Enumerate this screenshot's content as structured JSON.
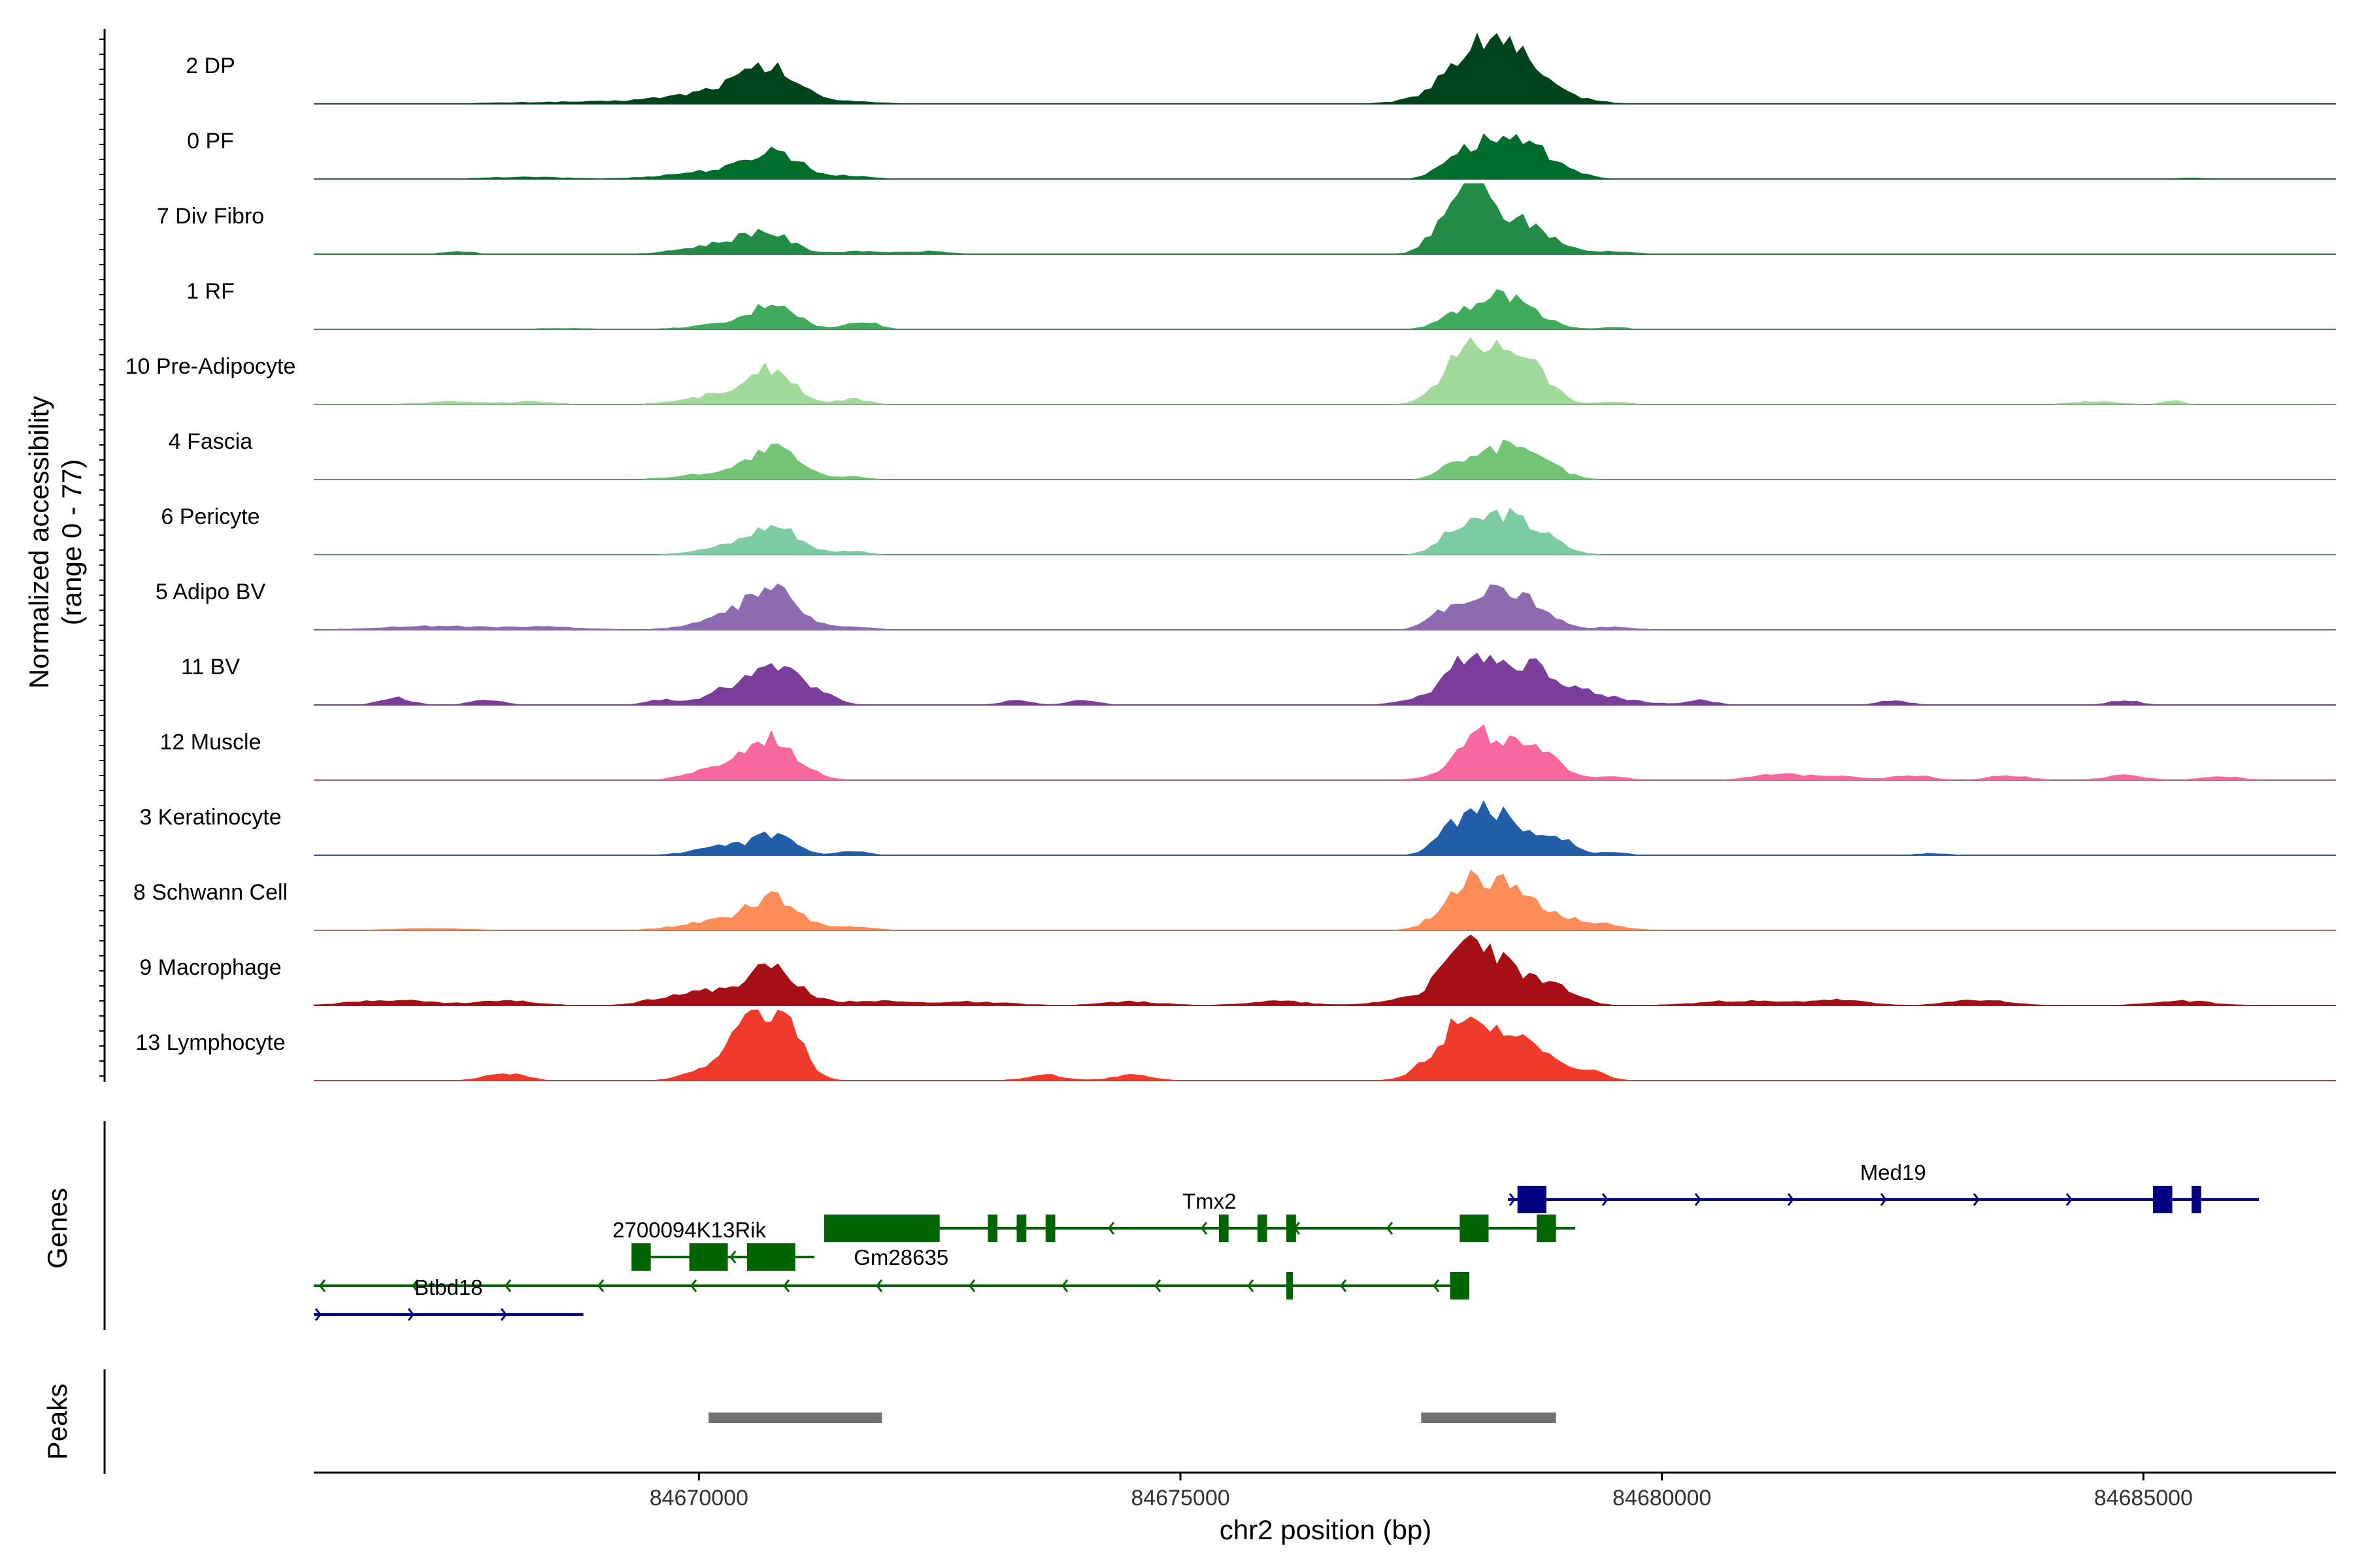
{
  "chart_data": {
    "type": "area",
    "chromosome": "chr2",
    "region": [
      84666000,
      84687000
    ],
    "xlabel": "chr2 position (bp)",
    "x_ticks": [
      84670000,
      84675000,
      84680000,
      84685000
    ],
    "x_tick_labels": [
      "84670000",
      "84675000",
      "84680000",
      "84685000"
    ],
    "ylabel_line1": "Normalized accessibility",
    "ylabel_line2": "(range 0 - 77)",
    "ylim": [
      0,
      77
    ],
    "genes_label": "Genes",
    "peaks_label": "Peaks",
    "series": [
      {
        "name": "2 DP",
        "color": "#00441b",
        "peaks": [
          [
            84668700,
            700,
            2
          ],
          [
            84670100,
            500,
            10
          ],
          [
            84670800,
            260,
            26
          ],
          [
            84670500,
            300,
            14
          ],
          [
            84671500,
            300,
            3
          ],
          [
            84677800,
            150,
            14
          ],
          [
            84678300,
            260,
            47
          ],
          [
            84678100,
            400,
            30
          ],
          [
            84678750,
            300,
            12
          ],
          [
            84679200,
            200,
            2
          ]
        ]
      },
      {
        "name": "0 PF",
        "color": "#006d2c",
        "peaks": [
          [
            84668200,
            400,
            2
          ],
          [
            84670300,
            500,
            10
          ],
          [
            84670800,
            250,
            26
          ],
          [
            84671600,
            200,
            3
          ],
          [
            84677800,
            150,
            14
          ],
          [
            84678250,
            280,
            44
          ],
          [
            84678750,
            220,
            20
          ],
          [
            84679000,
            200,
            5
          ],
          [
            84685500,
            200,
            1
          ]
        ]
      },
      {
        "name": "7 Div Fibro",
        "color": "#238b45",
        "peaks": [
          [
            84667500,
            150,
            3
          ],
          [
            84670200,
            350,
            10
          ],
          [
            84670700,
            250,
            22
          ],
          [
            84671700,
            250,
            3
          ],
          [
            84672400,
            200,
            3
          ],
          [
            84677700,
            150,
            20
          ],
          [
            84678000,
            130,
            62
          ],
          [
            84678200,
            300,
            40
          ],
          [
            84678700,
            250,
            20
          ],
          [
            84679500,
            200,
            3
          ]
        ]
      },
      {
        "name": "1 RF",
        "color": "#41ab5d",
        "peaks": [
          [
            84668600,
            300,
            1
          ],
          [
            84670500,
            400,
            8
          ],
          [
            84670800,
            200,
            24
          ],
          [
            84671700,
            150,
            9
          ],
          [
            84677800,
            150,
            10
          ],
          [
            84678300,
            300,
            36
          ],
          [
            84678700,
            200,
            6
          ],
          [
            84679500,
            150,
            2
          ]
        ]
      },
      {
        "name": "10 Pre-Adipocyte",
        "color": "#a1d99b",
        "peaks": [
          [
            84667500,
            350,
            3
          ],
          [
            84668300,
            200,
            3
          ],
          [
            84670000,
            300,
            5
          ],
          [
            84670400,
            250,
            12
          ],
          [
            84670800,
            200,
            38
          ],
          [
            84671600,
            150,
            6
          ],
          [
            84677800,
            150,
            12
          ],
          [
            84678000,
            250,
            44
          ],
          [
            84678400,
            250,
            50
          ],
          [
            84678700,
            200,
            20
          ],
          [
            84679500,
            150,
            3
          ],
          [
            84684500,
            250,
            3
          ],
          [
            84685300,
            100,
            4
          ]
        ]
      },
      {
        "name": "4 Fascia",
        "color": "#74c476",
        "peaks": [
          [
            84670300,
            400,
            8
          ],
          [
            84670800,
            250,
            30
          ],
          [
            84671600,
            150,
            3
          ],
          [
            84677800,
            120,
            12
          ],
          [
            84678300,
            300,
            36
          ],
          [
            84678800,
            200,
            12
          ]
        ]
      },
      {
        "name": "6 Pericyte",
        "color": "#7ccba2",
        "peaks": [
          [
            84670300,
            300,
            8
          ],
          [
            84670800,
            250,
            30
          ],
          [
            84671600,
            150,
            4
          ],
          [
            84677800,
            150,
            14
          ],
          [
            84678300,
            300,
            45
          ],
          [
            84678800,
            200,
            12
          ]
        ]
      },
      {
        "name": "5 Adipo BV",
        "color": "#8c6bb1",
        "peaks": [
          [
            84667200,
            500,
            4
          ],
          [
            84668400,
            400,
            3
          ],
          [
            84670100,
            300,
            5
          ],
          [
            84670500,
            300,
            14
          ],
          [
            84670800,
            250,
            36
          ],
          [
            84671600,
            200,
            3
          ],
          [
            84677700,
            150,
            15
          ],
          [
            84678300,
            300,
            46
          ],
          [
            84678750,
            200,
            10
          ],
          [
            84679500,
            200,
            3
          ]
        ]
      },
      {
        "name": "11 BV",
        "color": "#7a3d99",
        "peaks": [
          [
            84666850,
            150,
            8
          ],
          [
            84667800,
            150,
            6
          ],
          [
            84669600,
            150,
            5
          ],
          [
            84670400,
            300,
            18
          ],
          [
            84670800,
            250,
            32
          ],
          [
            84671200,
            200,
            12
          ],
          [
            84673300,
            150,
            5
          ],
          [
            84674000,
            150,
            5
          ],
          [
            84677500,
            200,
            8
          ],
          [
            84678000,
            200,
            56
          ],
          [
            84678500,
            250,
            38
          ],
          [
            84678900,
            300,
            20
          ],
          [
            84679500,
            300,
            6
          ],
          [
            84680400,
            150,
            5
          ],
          [
            84682400,
            150,
            5
          ],
          [
            84684800,
            150,
            5
          ]
        ]
      },
      {
        "name": "12 Muscle",
        "color": "#f768a1",
        "peaks": [
          [
            84669900,
            150,
            5
          ],
          [
            84670400,
            250,
            20
          ],
          [
            84670800,
            220,
            40
          ],
          [
            84671200,
            150,
            4
          ],
          [
            84677700,
            200,
            4
          ],
          [
            84678100,
            220,
            45
          ],
          [
            84678550,
            250,
            30
          ],
          [
            84678900,
            200,
            10
          ],
          [
            84679500,
            150,
            4
          ],
          [
            84681200,
            250,
            6
          ],
          [
            84681800,
            250,
            5
          ],
          [
            84682600,
            200,
            5
          ],
          [
            84683600,
            200,
            5
          ],
          [
            84684800,
            200,
            5
          ],
          [
            84685800,
            200,
            4
          ]
        ]
      },
      {
        "name": "3 Keratinocyte",
        "color": "#225ea8",
        "peaks": [
          [
            84670300,
            300,
            10
          ],
          [
            84670800,
            200,
            20
          ],
          [
            84671600,
            150,
            4
          ],
          [
            84677800,
            150,
            16
          ],
          [
            84678200,
            280,
            50
          ],
          [
            84678850,
            200,
            22
          ],
          [
            84679500,
            150,
            3
          ],
          [
            84682800,
            150,
            2
          ]
        ]
      },
      {
        "name": "8 Schwann Cell",
        "color": "#fc8d59",
        "peaks": [
          [
            84667200,
            400,
            2
          ],
          [
            84670300,
            400,
            12
          ],
          [
            84670800,
            250,
            30
          ],
          [
            84671600,
            200,
            4
          ],
          [
            84677800,
            200,
            12
          ],
          [
            84678150,
            280,
            55
          ],
          [
            84678700,
            250,
            22
          ],
          [
            84679300,
            250,
            8
          ]
        ]
      },
      {
        "name": "9 Macrophage",
        "color": "#a50f15",
        "peaks": [
          [
            84666800,
            400,
            6
          ],
          [
            84668000,
            300,
            5
          ],
          [
            84669800,
            300,
            10
          ],
          [
            84670500,
            400,
            15
          ],
          [
            84670800,
            250,
            30
          ],
          [
            84671800,
            300,
            5
          ],
          [
            84672800,
            400,
            4
          ],
          [
            84674500,
            300,
            4
          ],
          [
            84676000,
            300,
            5
          ],
          [
            84677400,
            300,
            8
          ],
          [
            84678000,
            250,
            66
          ],
          [
            84678500,
            300,
            30
          ],
          [
            84679000,
            200,
            10
          ],
          [
            84680800,
            400,
            5
          ],
          [
            84681800,
            300,
            6
          ],
          [
            84683300,
            300,
            6
          ],
          [
            84685400,
            300,
            5
          ]
        ]
      },
      {
        "name": "13 Lymphocyte",
        "color": "#ef3b2c",
        "peaks": [
          [
            84668000,
            200,
            8
          ],
          [
            84670200,
            250,
            20
          ],
          [
            84670500,
            150,
            45
          ],
          [
            84670800,
            200,
            70
          ],
          [
            84671100,
            150,
            10
          ],
          [
            84673600,
            200,
            6
          ],
          [
            84674500,
            200,
            6
          ],
          [
            84677600,
            200,
            12
          ],
          [
            84678000,
            250,
            72
          ],
          [
            84678500,
            250,
            35
          ],
          [
            84678900,
            200,
            12
          ],
          [
            84679300,
            150,
            8
          ]
        ]
      }
    ],
    "genes": [
      {
        "name": "Med19",
        "strand": "+",
        "color": "#000080",
        "row": 1,
        "start": 84678400,
        "end": 84686200,
        "exons": [
          [
            84678500,
            84678800
          ],
          [
            84685100,
            84685300
          ],
          [
            84685500,
            84685600
          ]
        ],
        "label_x": 84682400,
        "label_side": "above"
      },
      {
        "name": "Tmx2",
        "strand": "-",
        "color": "#006400",
        "row": 2,
        "start": 84671300,
        "end": 84679100,
        "exons": [
          [
            84671300,
            84672500
          ],
          [
            84673000,
            84673100
          ],
          [
            84673300,
            84673400
          ],
          [
            84673600,
            84673700
          ],
          [
            84675400,
            84675500
          ],
          [
            84675800,
            84675900
          ],
          [
            84676100,
            84676200
          ],
          [
            84677900,
            84678200
          ],
          [
            84678700,
            84678900
          ]
        ],
        "label_x": 84675300,
        "label_side": "above"
      },
      {
        "name": "Gm28635",
        "strand": "+",
        "color": "#006400",
        "row": 2,
        "start": 84671300,
        "end": 84672500,
        "exons": [],
        "label_x": 84672100,
        "label_side": "below"
      },
      {
        "name": "2700094K13Rik",
        "strand": "-",
        "color": "#006400",
        "row": 3,
        "start": 84669300,
        "end": 84671200,
        "exons": [
          [
            84669300,
            84669500
          ],
          [
            84669900,
            84670300
          ],
          [
            84670500,
            84671000
          ]
        ],
        "label_x": 84669900,
        "label_side": "above"
      },
      {
        "name": "Tmx2",
        "strand": "-",
        "color": "#006400",
        "row": 4,
        "start": 84666000,
        "end": 84678000,
        "exons": [
          [
            84676100,
            84676150
          ],
          [
            84677800,
            84678000
          ]
        ],
        "label_x": null,
        "label_side": "none"
      },
      {
        "name": "Btbd18",
        "strand": "+",
        "color": "#000080",
        "row": 5,
        "start": 84666000,
        "end": 84668800,
        "exons": [],
        "label_x": 84667400,
        "label_side": "above"
      }
    ],
    "peak_regions": [
      [
        84670100,
        84671900
      ],
      [
        84677500,
        84678900
      ]
    ]
  }
}
